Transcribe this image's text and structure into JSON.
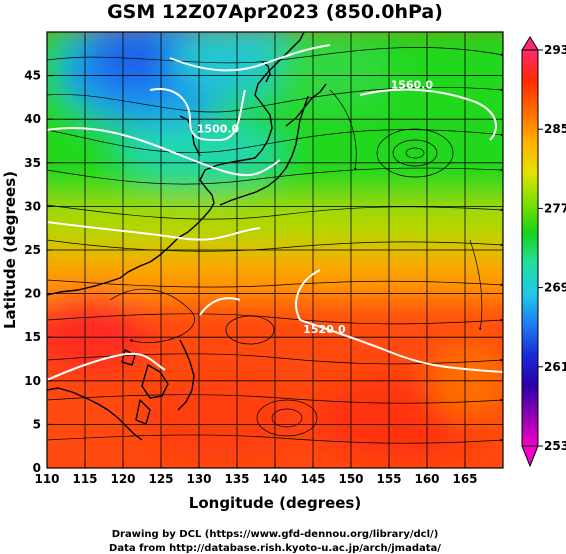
{
  "title": "GSM 12Z07Apr2023 (850.0hPa)",
  "x_axis": {
    "label": "Longitude (degrees)",
    "range": [
      110,
      170
    ],
    "ticks": [
      110,
      115,
      120,
      125,
      130,
      135,
      140,
      145,
      150,
      155,
      160,
      165
    ]
  },
  "y_axis": {
    "label": "Latitude (degrees)",
    "range": [
      0,
      50
    ],
    "ticks": [
      0,
      5,
      10,
      15,
      20,
      25,
      30,
      35,
      40,
      45
    ]
  },
  "colorbar": {
    "range": [
      253,
      293
    ],
    "labels": [
      293,
      285,
      277,
      269,
      261,
      253
    ],
    "colors": [
      "#ff2a6e",
      "#ff2a00",
      "#ff6a00",
      "#ffb000",
      "#e7e000",
      "#7fe000",
      "#19d219",
      "#20e0a0",
      "#22c8e8",
      "#1e7cf0",
      "#1a2cd8",
      "#2800a8",
      "#9000b0",
      "#f000c8"
    ]
  },
  "contours": [
    {
      "value": "1560.0",
      "lon": 158,
      "lat": 43.5
    },
    {
      "value": "1500.0",
      "lon": 132.5,
      "lat": 38.5
    },
    {
      "value": "1520.0",
      "lon": 146.5,
      "lat": 15.5
    }
  ],
  "credits": [
    "Drawing by DCL (https://www.gfd-dennou.org/library/dcl/)",
    "Data from http://database.rish.kyoto-u.ac.jp/arch/jmadata/"
  ]
}
